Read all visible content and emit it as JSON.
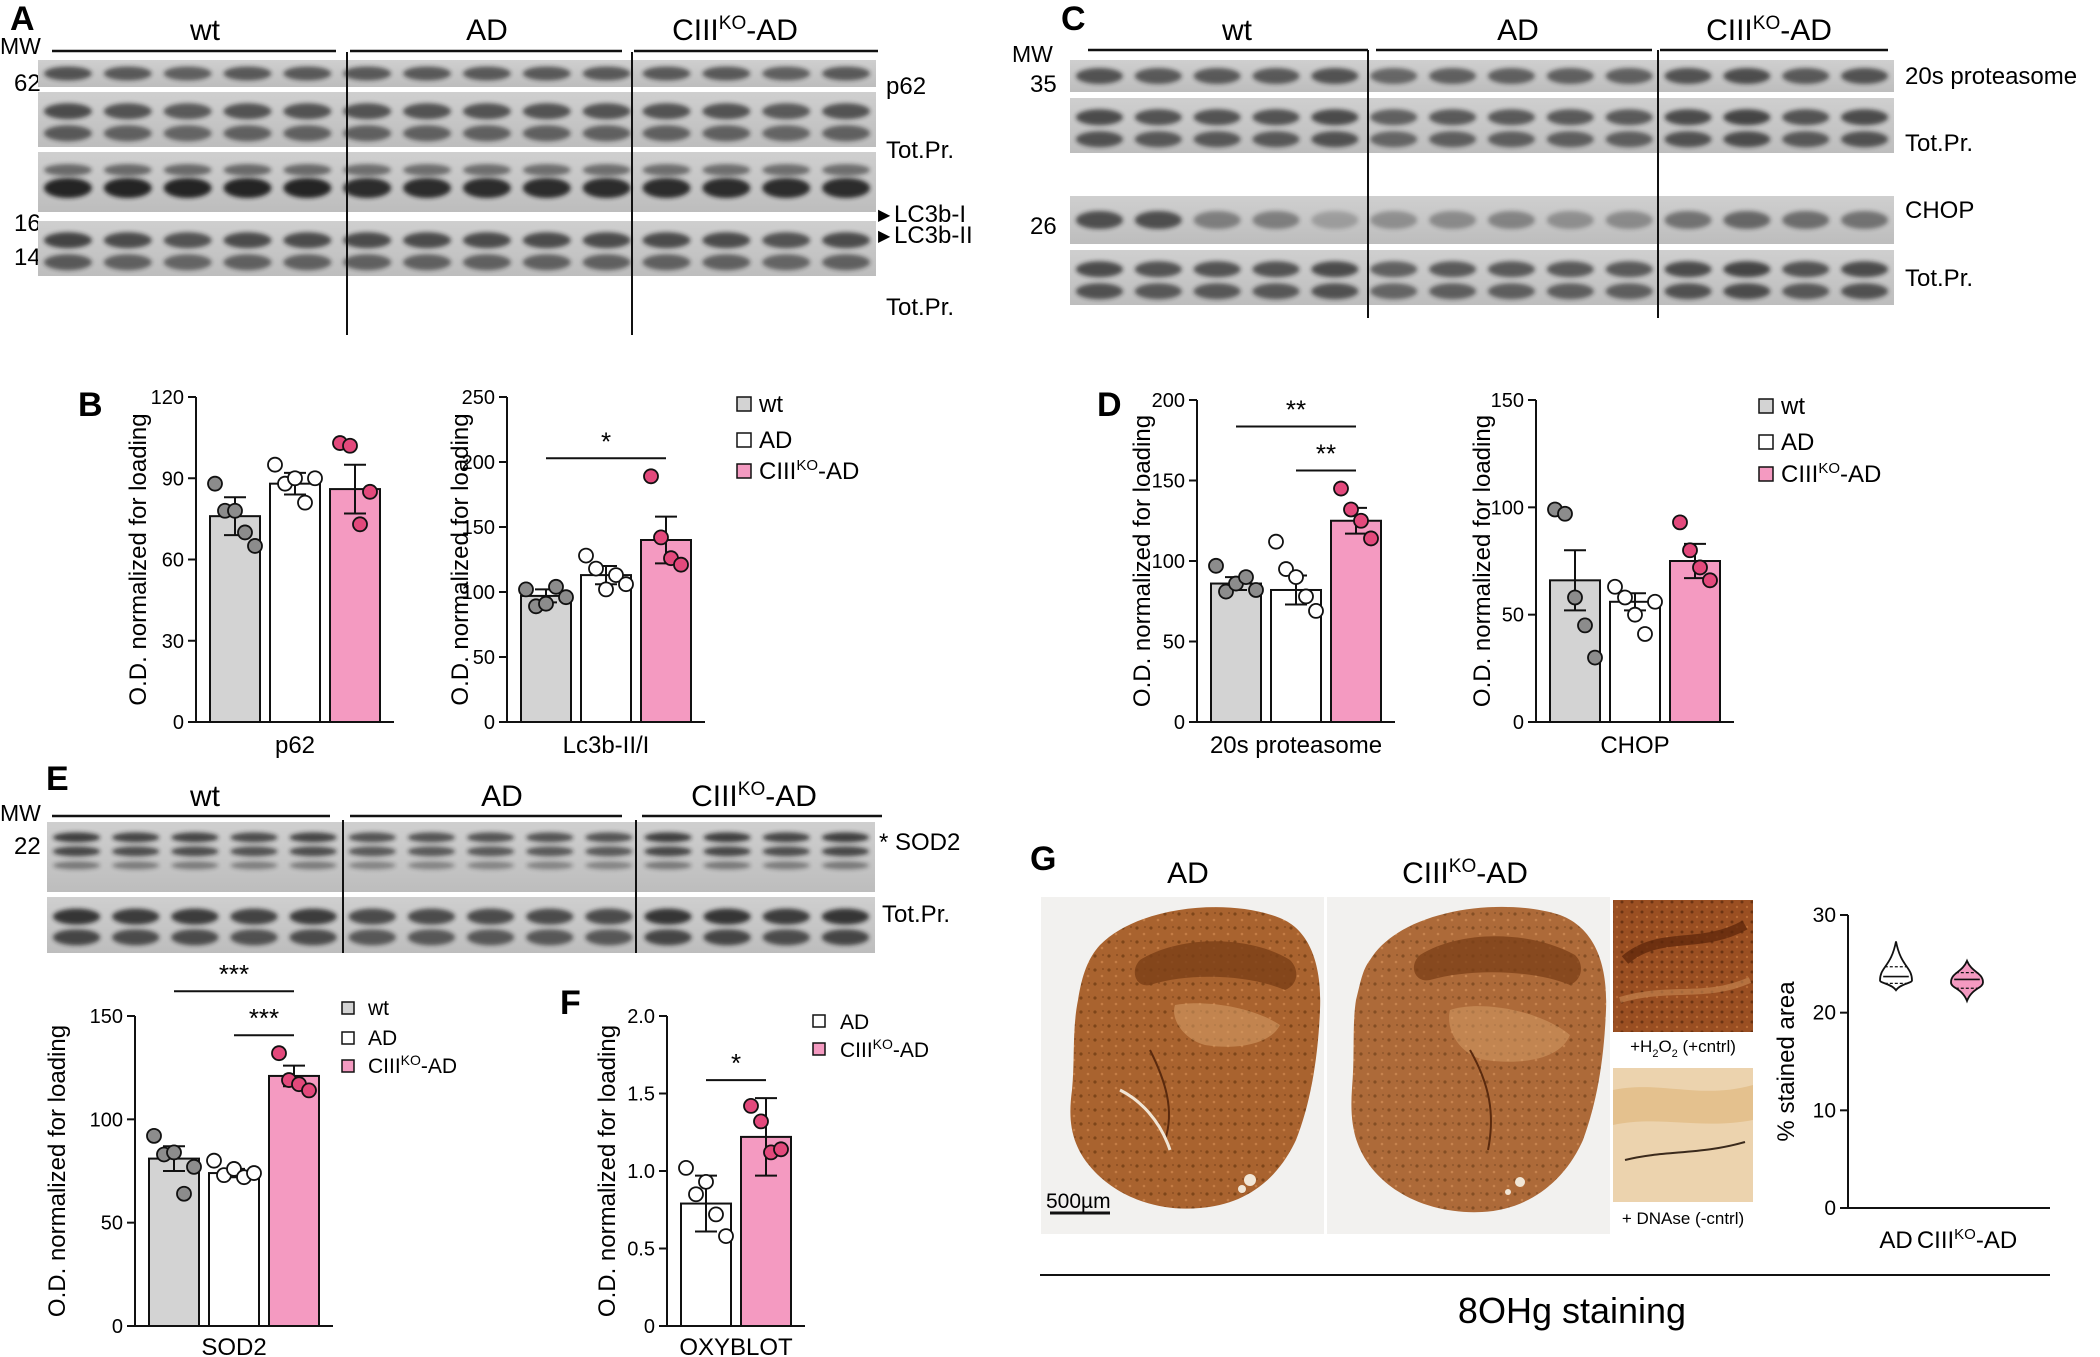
{
  "colors": {
    "wt": "#d3d3d3",
    "ad": "#ffffff",
    "ko": "#f49ac1",
    "wt_dot": "#8c8c8c",
    "ko_dot": "#e3497c",
    "stain": "#a9632f"
  },
  "panels": {
    "A": "A",
    "B": "B",
    "C": "C",
    "D": "D",
    "E": "E",
    "F": "F",
    "G": "G"
  },
  "groups": {
    "wt": "wt",
    "ad": "AD",
    "ko_base": "CIII",
    "ko_sup": "KO",
    "ko_suffix": "-AD"
  },
  "blot_a": {
    "mw_title": "MW",
    "mw": [
      "62",
      "16",
      "14"
    ],
    "labels": [
      "p62",
      "Tot.Pr.",
      "LC3b-I",
      "LC3b-II",
      "Tot.Pr."
    ]
  },
  "blot_c": {
    "mw_title": "MW",
    "mw": [
      "35",
      "26"
    ],
    "labels": [
      "20s proteasome",
      "Tot.Pr.",
      "CHOP",
      "Tot.Pr."
    ]
  },
  "blot_e": {
    "mw_title": "MW",
    "mw": [
      "22"
    ],
    "labels": [
      "* SOD2",
      "Tot.Pr."
    ]
  },
  "y_label": "O.D. normalized for loading",
  "chart_data": [
    {
      "id": "b1",
      "type": "bar",
      "xlabel": "p62",
      "ylabel": "O.D. normalized for loading",
      "ylim": [
        0,
        120
      ],
      "yticks": [
        "0",
        "30",
        "60",
        "90",
        "120"
      ],
      "categories": [
        "wt",
        "AD",
        "CIIIKO-AD"
      ],
      "values": [
        76,
        88,
        86
      ],
      "errors": [
        7,
        4,
        9
      ],
      "points": [
        [
          88,
          78,
          78,
          70,
          65
        ],
        [
          95,
          88,
          90,
          81,
          90
        ],
        [
          103,
          102,
          73,
          85
        ]
      ],
      "significance": []
    },
    {
      "id": "b2",
      "type": "bar",
      "xlabel": "Lc3b-II/I",
      "ylabel": "O.D. normalized for loading",
      "ylim": [
        0,
        250
      ],
      "yticks": [
        "0",
        "50",
        "100",
        "150",
        "200",
        "250"
      ],
      "categories": [
        "wt",
        "AD",
        "CIIIKO-AD"
      ],
      "values": [
        97,
        113,
        140
      ],
      "errors": [
        5,
        7,
        18
      ],
      "points": [
        [
          102,
          89,
          91,
          104,
          96
        ],
        [
          128,
          118,
          102,
          113,
          106
        ],
        [
          189,
          142,
          126,
          121
        ]
      ],
      "significance": [
        {
          "from": 0,
          "to": 2,
          "label": "*"
        }
      ]
    },
    {
      "id": "d1",
      "type": "bar",
      "xlabel": "20s proteasome",
      "ylabel": "O.D. normalized for loading",
      "ylim": [
        0,
        200
      ],
      "yticks": [
        "0",
        "50",
        "100",
        "150",
        "200"
      ],
      "categories": [
        "wt",
        "AD",
        "CIIIKO-AD"
      ],
      "values": [
        86,
        82,
        125
      ],
      "errors": [
        4,
        9,
        8
      ],
      "points": [
        [
          97,
          81,
          86,
          90,
          82
        ],
        [
          112,
          95,
          90,
          78,
          69
        ],
        [
          145,
          132,
          125,
          114
        ]
      ],
      "significance": [
        {
          "from": 0,
          "to": 2,
          "label": "**"
        },
        {
          "from": 1,
          "to": 2,
          "label": "**"
        }
      ]
    },
    {
      "id": "d2",
      "type": "bar",
      "xlabel": "CHOP",
      "ylabel": "O.D. normalized for loading",
      "ylim": [
        0,
        150
      ],
      "yticks": [
        "0",
        "50",
        "100",
        "150"
      ],
      "categories": [
        "wt",
        "AD",
        "CIIIKO-AD"
      ],
      "values": [
        66,
        56,
        75
      ],
      "errors": [
        14,
        4,
        8
      ],
      "points": [
        [
          99,
          97,
          58,
          45,
          30
        ],
        [
          63,
          58,
          50,
          41,
          56
        ],
        [
          93,
          80,
          72,
          66
        ]
      ],
      "significance": []
    },
    {
      "id": "e1",
      "type": "bar",
      "xlabel": "SOD2",
      "ylabel": "O.D. normalized for loading",
      "ylim": [
        0,
        150
      ],
      "yticks": [
        "0",
        "50",
        "100",
        "150"
      ],
      "categories": [
        "wt",
        "AD",
        "CIIIKO-AD"
      ],
      "values": [
        81,
        74,
        121
      ],
      "errors": [
        6,
        2,
        5
      ],
      "points": [
        [
          92,
          83,
          84,
          64,
          77
        ],
        [
          80,
          73,
          76,
          72,
          74
        ],
        [
          132,
          119,
          117,
          114
        ]
      ],
      "significance": [
        {
          "from": 0,
          "to": 2,
          "label": "***"
        },
        {
          "from": 1,
          "to": 2,
          "label": "***"
        }
      ]
    },
    {
      "id": "f1",
      "type": "bar",
      "xlabel": "OXYBLOT",
      "ylabel": "O.D. normalized for loading",
      "ylim": [
        0,
        2.0
      ],
      "yticks": [
        "0",
        "0.5",
        "1.0",
        "1.5",
        "2.0"
      ],
      "categories": [
        "AD",
        "CIIIKO-AD"
      ],
      "values": [
        0.79,
        1.22
      ],
      "errors": [
        0.18,
        0.25
      ],
      "points": [
        [
          1.02,
          0.85,
          0.93,
          0.72,
          0.58
        ],
        [
          1.42,
          1.32,
          1.12,
          1.14
        ]
      ],
      "significance": [
        {
          "from": 0,
          "to": 1,
          "label": "*"
        }
      ]
    },
    {
      "id": "g1",
      "type": "violin",
      "xlabel": "",
      "ylabel": "% stained area",
      "ylim": [
        0,
        30
      ],
      "yticks": [
        "0",
        "10",
        "20",
        "30"
      ],
      "categories": [
        "AD",
        "CIIIKO-AD"
      ],
      "distributions": [
        {
          "min": 22.3,
          "q1": 23.0,
          "median": 23.7,
          "q3": 24.7,
          "max": 27.3,
          "peak": 23.3
        },
        {
          "min": 21.2,
          "q1": 22.5,
          "median": 23.4,
          "q3": 24.1,
          "max": 25.3,
          "peak": 23.1
        }
      ]
    }
  ],
  "g_panel": {
    "col_labels": [
      "AD"
    ],
    "scale_bar": "500µm",
    "insets": [
      {
        "prefix": "+H",
        "sub1": "2",
        "mid": "O",
        "sub2": "2",
        "suffix": " (+cntrl)"
      },
      {
        "text": "+ DNAse (-cntrl)"
      }
    ],
    "caption": "8OHg staining"
  }
}
